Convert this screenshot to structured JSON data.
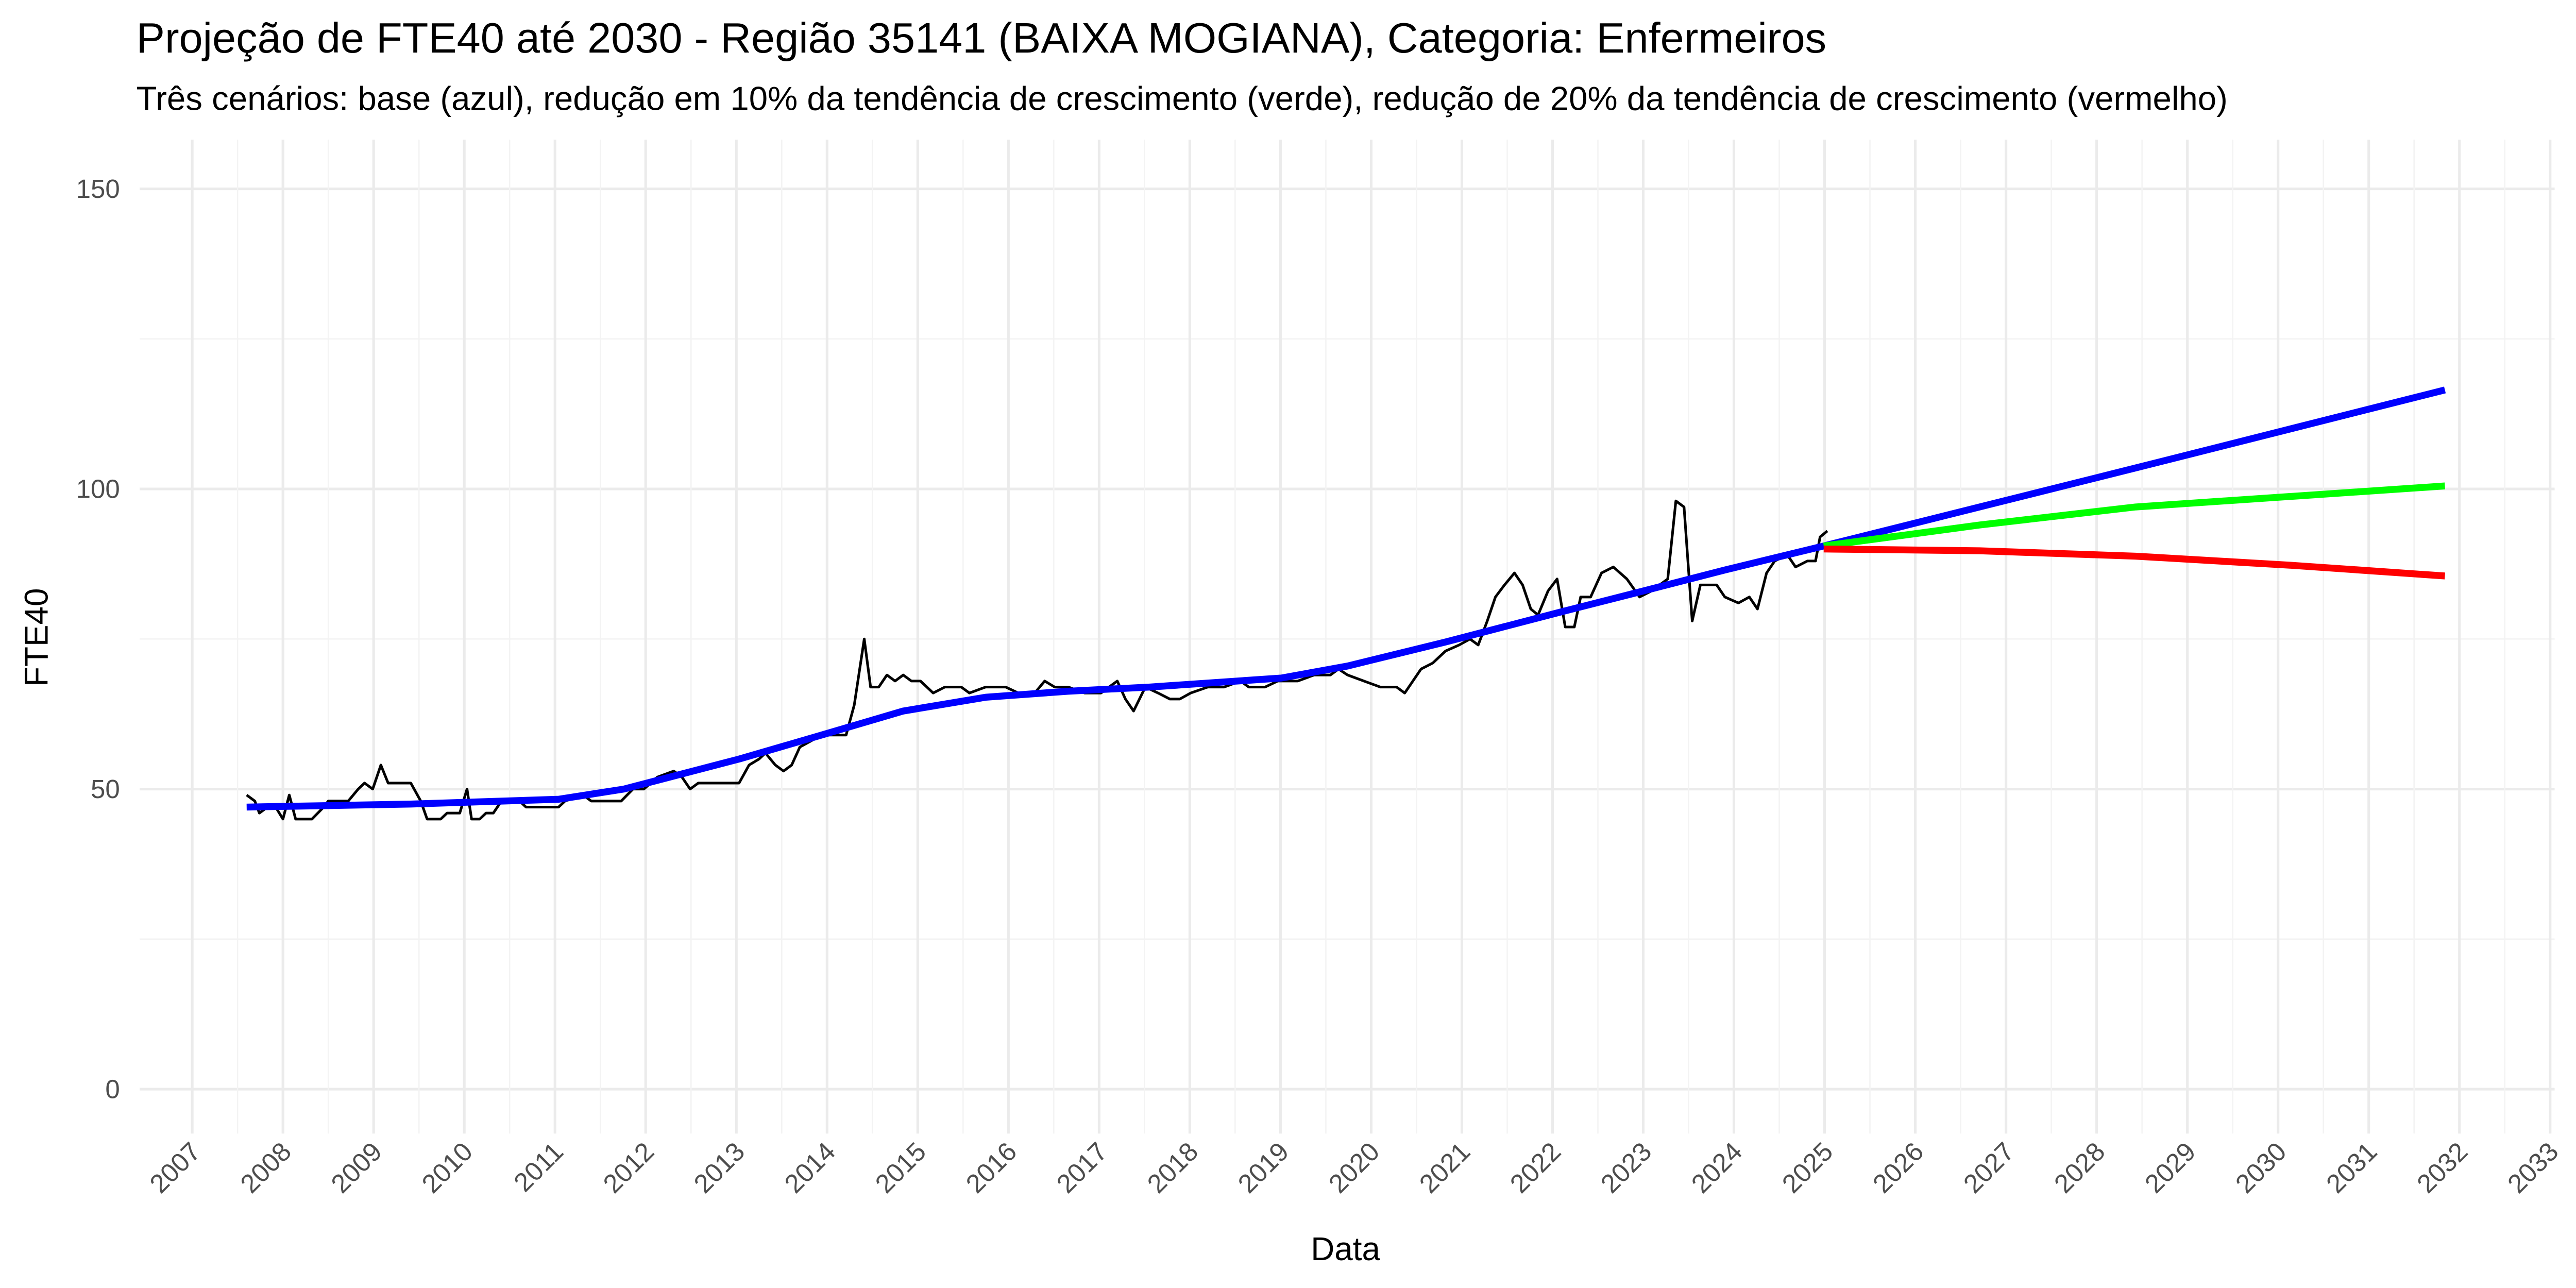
{
  "chart_data": {
    "type": "line",
    "title": "Projeção de FTE40 até 2030 - Região 35141 (BAIXA MOGIANA), Categoria: Enfermeiros",
    "subtitle": "Três cenários: base (azul), redução em 10% da tendência de crescimento (verde), redução de 20% da tendência de crescimento (vermelho)",
    "x_label": "Data",
    "y_label": "FTE40",
    "xlim": [
      2006.42,
      2033.05
    ],
    "ylim": [
      -7.4,
      158.2
    ],
    "xticks": [
      2007,
      2008,
      2009,
      2010,
      2011,
      2012,
      2013,
      2014,
      2015,
      2016,
      2017,
      2018,
      2019,
      2020,
      2021,
      2022,
      2023,
      2024,
      2025,
      2026,
      2027,
      2028,
      2029,
      2030,
      2031,
      2032,
      2033
    ],
    "yticks": [
      0,
      50,
      100,
      150
    ],
    "grid": true,
    "series": [
      {
        "color": "#000000",
        "x": [
          2007.6,
          2007.69,
          2007.74,
          2007.83,
          2007.92,
          2008.0,
          2008.07,
          2008.14,
          2008.32,
          2008.45,
          2008.5,
          2008.72,
          2008.83,
          2008.9,
          2008.99,
          2009.08,
          2009.16,
          2009.41,
          2009.52,
          2009.59,
          2009.74,
          2009.81,
          2009.95,
          2010.03,
          2010.08,
          2010.17,
          2010.24,
          2010.32,
          2010.41,
          2010.61,
          2010.68,
          2011.04,
          2011.11,
          2011.31,
          2011.4,
          2011.73,
          2011.86,
          2011.98,
          2012.13,
          2012.31,
          2012.4,
          2012.49,
          2012.58,
          2013.03,
          2013.14,
          2013.25,
          2013.32,
          2013.43,
          2013.52,
          2013.61,
          2013.7,
          2013.94,
          2014.21,
          2014.3,
          2014.41,
          2014.48,
          2014.57,
          2014.66,
          2014.75,
          2014.84,
          2014.93,
          2015.03,
          2015.17,
          2015.3,
          2015.48,
          2015.57,
          2015.75,
          2015.97,
          2016.11,
          2016.29,
          2016.4,
          2016.51,
          2016.66,
          2016.84,
          2017.02,
          2017.2,
          2017.29,
          2017.38,
          2017.51,
          2017.65,
          2017.78,
          2017.89,
          2018.01,
          2018.2,
          2018.38,
          2018.56,
          2018.65,
          2018.83,
          2018.97,
          2019.19,
          2019.37,
          2019.55,
          2019.64,
          2019.74,
          2019.92,
          2020.1,
          2020.28,
          2020.37,
          2020.46,
          2020.55,
          2020.68,
          2020.82,
          2020.97,
          2021.09,
          2021.18,
          2021.28,
          2021.37,
          2021.47,
          2021.58,
          2021.67,
          2021.76,
          2021.84,
          2021.95,
          2022.05,
          2022.14,
          2022.24,
          2022.31,
          2022.42,
          2022.54,
          2022.67,
          2022.82,
          2022.96,
          2023.09,
          2023.18,
          2023.27,
          2023.36,
          2023.45,
          2023.54,
          2023.63,
          2023.81,
          2023.9,
          2024.05,
          2024.17,
          2024.26,
          2024.36,
          2024.45,
          2024.59,
          2024.68,
          2024.81,
          2024.9,
          2024.95,
          2025.03
        ],
        "values": [
          49,
          48,
          46,
          47,
          47,
          45,
          49,
          45,
          45,
          47,
          48,
          48,
          50,
          51,
          50,
          54,
          51,
          51,
          48,
          45,
          45,
          46,
          46,
          50,
          45,
          45,
          46,
          46,
          48,
          48,
          47,
          47,
          48,
          49,
          48,
          48,
          50,
          50,
          52,
          53,
          52,
          50,
          51,
          51,
          54,
          55,
          56,
          54,
          53,
          54,
          57,
          59,
          59,
          64,
          75,
          67,
          67,
          69,
          68,
          69,
          68,
          68,
          66,
          67,
          67,
          66,
          67,
          67,
          66,
          66,
          68,
          67,
          67,
          66,
          66,
          68,
          65,
          63,
          67,
          66,
          65,
          65,
          66,
          67,
          67,
          68,
          67,
          67,
          68,
          68,
          69,
          69,
          70,
          69,
          68,
          67,
          67,
          66,
          68,
          70,
          71,
          73,
          74,
          75,
          74,
          78,
          82,
          84,
          86,
          84,
          80,
          79,
          83,
          85,
          77,
          77,
          82,
          82,
          86,
          87,
          85,
          82,
          83,
          84,
          85,
          98,
          97,
          78,
          84,
          84,
          82,
          81,
          82,
          80,
          86,
          88,
          89,
          87,
          88,
          88,
          92,
          93
        ]
      },
      {
        "color": "#0000ff",
        "x": [
          2007.6,
          2009.41,
          2011.04,
          2011.76,
          2013.03,
          2013.94,
          2014.84,
          2015.75,
          2016.66,
          2017.56,
          2019.01,
          2019.74,
          2020.82,
          2022.09,
          2023.0,
          2023.9,
          2024.99,
          2028.43,
          2031.84
        ],
        "values": [
          47,
          47.5,
          48.3,
          50,
          55,
          59,
          63,
          65.3,
          66.3,
          67,
          68.5,
          70.5,
          74.5,
          79.5,
          83,
          86.5,
          90.5,
          103.5,
          116.5
        ]
      },
      {
        "color": "#00ff00",
        "x": [
          2024.99,
          2026.71,
          2028.43,
          2031.84
        ],
        "values": [
          90.5,
          94,
          97,
          100.5
        ]
      },
      {
        "color": "#ff0000",
        "x": [
          2024.99,
          2026.71,
          2028.43,
          2030.13,
          2031.84
        ],
        "values": [
          90,
          89.7,
          88.8,
          87.3,
          85.5
        ]
      }
    ]
  }
}
